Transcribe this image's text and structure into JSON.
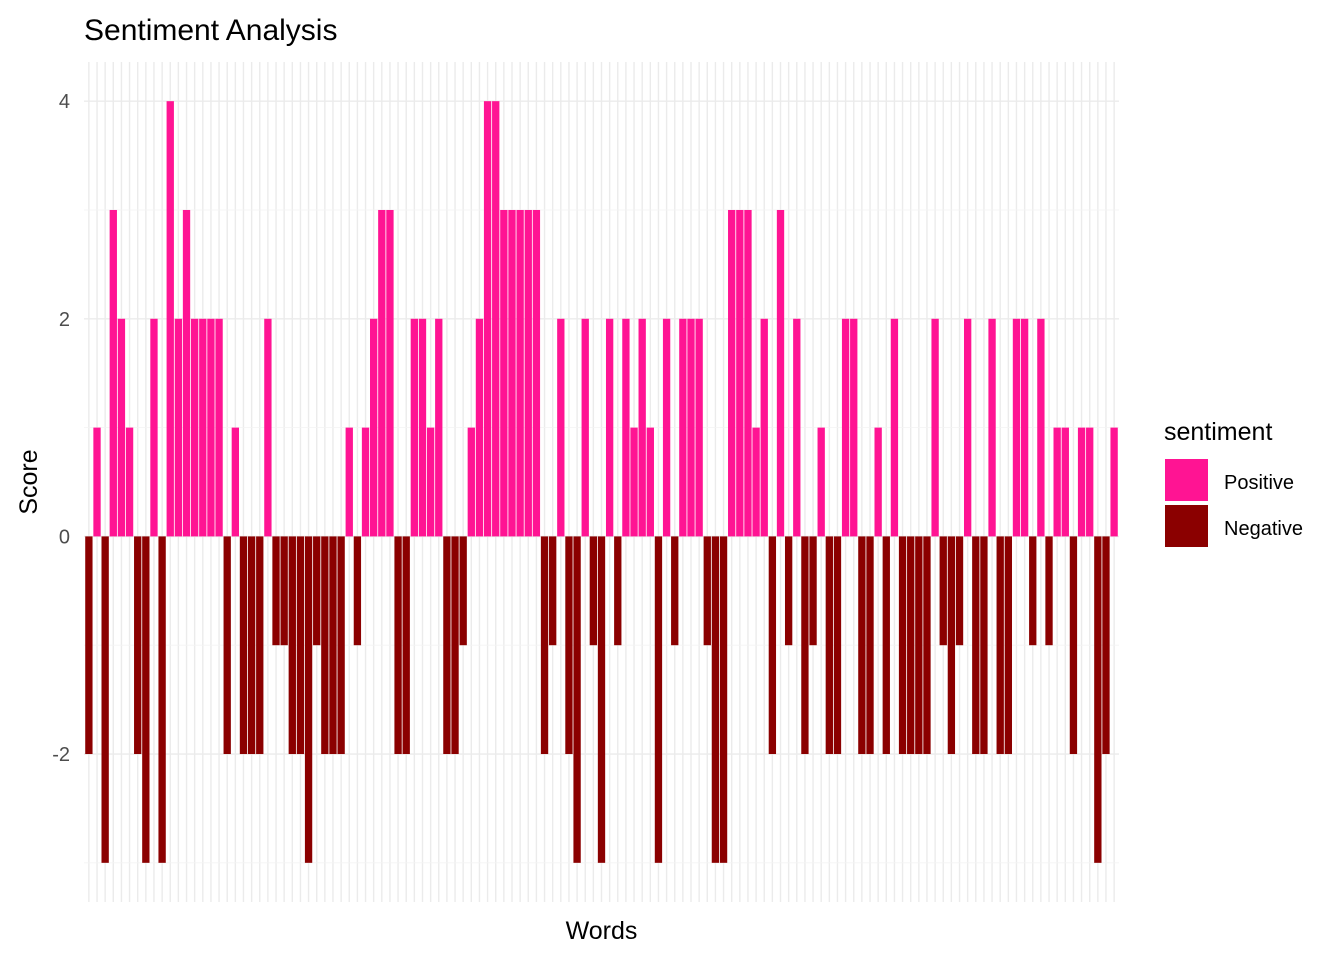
{
  "chart_data": {
    "type": "bar",
    "title": "Sentiment Analysis",
    "xlabel": "Words",
    "ylabel": "Score",
    "ylim": [
      -3.36,
      4.36
    ],
    "yticks": [
      -2,
      0,
      2,
      4
    ],
    "x_tick_labels": "hidden",
    "grid": true,
    "legend": {
      "title": "sentiment",
      "position": "right",
      "entries": [
        {
          "label": "Positive",
          "color": "#FF1493"
        },
        {
          "label": "Negative",
          "color": "#8B0000"
        }
      ]
    },
    "values": [
      -2,
      1,
      -3,
      3,
      2,
      1,
      -2,
      -3,
      2,
      -3,
      4,
      2,
      3,
      2,
      2,
      2,
      2,
      -2,
      1,
      -2,
      -2,
      -2,
      2,
      -1,
      -1,
      -2,
      -2,
      -3,
      -1,
      -2,
      -2,
      -2,
      1,
      -1,
      1,
      2,
      3,
      3,
      -2,
      -2,
      2,
      2,
      1,
      2,
      -2,
      -2,
      -1,
      1,
      2,
      4,
      4,
      3,
      3,
      3,
      3,
      3,
      -2,
      -1,
      2,
      -2,
      -3,
      2,
      -1,
      -3,
      2,
      -1,
      2,
      1,
      2,
      1,
      -3,
      2,
      -1,
      2,
      2,
      2,
      -1,
      -3,
      -3,
      3,
      3,
      3,
      1,
      2,
      -2,
      3,
      -1,
      2,
      -2,
      -1,
      1,
      -2,
      -2,
      2,
      2,
      -2,
      -2,
      1,
      -2,
      2,
      -2,
      -2,
      -2,
      -2,
      2,
      -1,
      -2,
      -1,
      2,
      -2,
      -2,
      2,
      -2,
      -2,
      2,
      2,
      -1,
      2,
      -1,
      1,
      1,
      -2,
      1,
      1,
      -3,
      -2,
      1
    ]
  }
}
